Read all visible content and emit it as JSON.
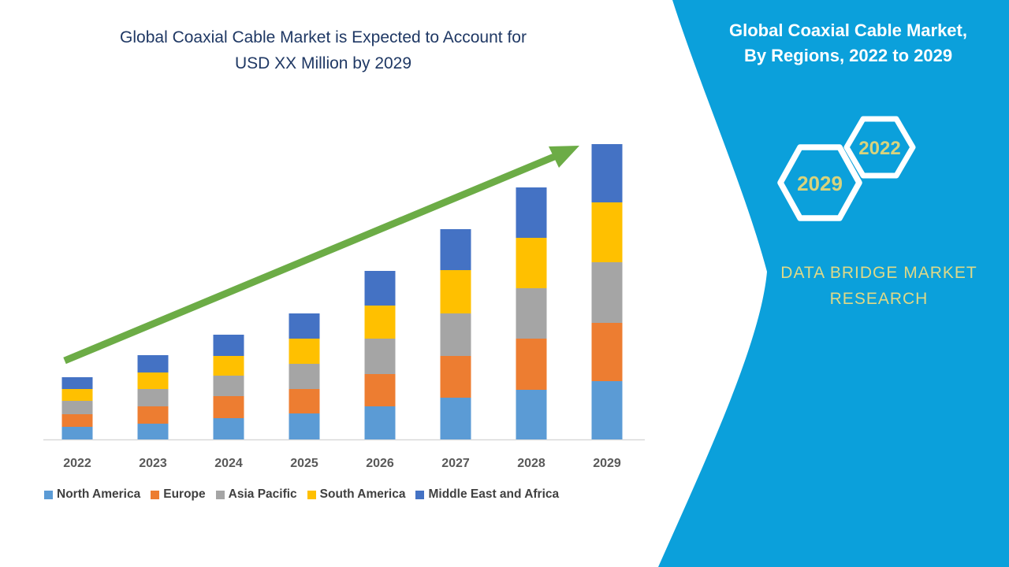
{
  "chart_title": {
    "line1": "Global Coaxial Cable Market is Expected to Account for",
    "line2": "USD XX Million by 2029"
  },
  "panel": {
    "title_line1": "Global Coaxial Cable Market,",
    "title_line2": "By Regions, 2022 to 2029",
    "hexagons": [
      {
        "year": "2022"
      },
      {
        "year": "2029"
      }
    ],
    "brand_line1": "DATA BRIDGE MARKET",
    "brand_line2": "RESEARCH",
    "background_color": "#0BA0DB",
    "accent_text_color": "#DFD987"
  },
  "chart_data": {
    "type": "bar",
    "stacked": true,
    "title": "Global Coaxial Cable Market is Expected to Account for USD XX Million by 2029",
    "categories": [
      "2022",
      "2023",
      "2024",
      "2025",
      "2026",
      "2027",
      "2028",
      "2029"
    ],
    "series": [
      {
        "name": "North America",
        "color": "#5B9BD5",
        "values": [
          16,
          20,
          27,
          33,
          42,
          53,
          63,
          74
        ]
      },
      {
        "name": "Europe",
        "color": "#ED7D31",
        "values": [
          16,
          22,
          28,
          31,
          41,
          53,
          65,
          74
        ]
      },
      {
        "name": "Asia Pacific",
        "color": "#A5A5A5",
        "values": [
          17,
          22,
          26,
          32,
          45,
          54,
          64,
          77
        ]
      },
      {
        "name": "South America",
        "color": "#FFC000",
        "values": [
          15,
          21,
          25,
          32,
          42,
          55,
          64,
          76
        ]
      },
      {
        "name": "Middle East and Africa",
        "color": "#4472C4",
        "values": [
          15,
          22,
          27,
          32,
          44,
          52,
          64,
          74
        ]
      }
    ],
    "totals": [
      79,
      107,
      133,
      160,
      214,
      267,
      320,
      375
    ],
    "value_axis_visible": false,
    "ylim": [
      0,
      400
    ],
    "grid": false,
    "legend_position": "bottom",
    "axis_line_color": "#D9D9D9",
    "trend_arrow": {
      "color": "#6CAC46",
      "direction": "up",
      "from_category": "2022",
      "to_category": "2029"
    }
  }
}
